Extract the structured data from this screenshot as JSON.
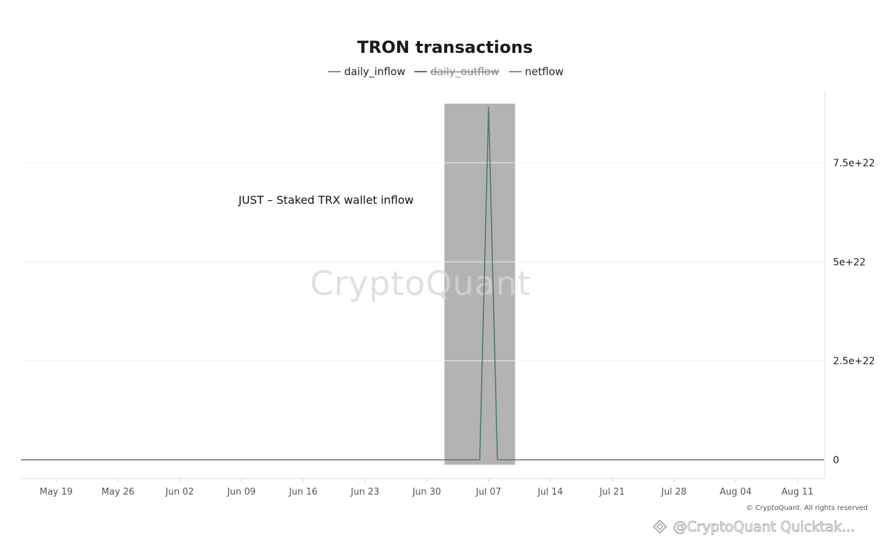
{
  "chart_data": {
    "type": "line",
    "title": "TRON transactions",
    "xlabel": "",
    "ylabel": "",
    "legend": {
      "placement": "top-center",
      "items": [
        {
          "name": "daily_inflow",
          "color": "#6f9a86",
          "hidden": false
        },
        {
          "name": "daily_outflow",
          "color": "#666666",
          "hidden": true
        },
        {
          "name": "netflow",
          "color": "#6f9a86",
          "hidden": false
        }
      ]
    },
    "x_ticks": [
      "May 19",
      "May 26",
      "Jun 02",
      "Jun 09",
      "Jun 16",
      "Jun 23",
      "Jun 30",
      "Jul 07",
      "Jul 14",
      "Jul 21",
      "Jul 28",
      "Aug 04",
      "Aug 11"
    ],
    "y_ticks": [
      "0",
      "2.5e+22",
      "5e+22",
      "7.5e+22"
    ],
    "y_tick_values": [
      0,
      2.5e+22,
      5e+22,
      7.5e+22
    ],
    "xlim": [
      "2024-05-15",
      "2024-08-14"
    ],
    "ylim": [
      -5e+21,
      9.3e+22
    ],
    "grid": true,
    "y_axis_side": "right",
    "series": [
      {
        "name": "netflow",
        "color": "#4f7a66",
        "x": [
          "2024-05-15",
          "2024-07-06",
          "2024-07-07",
          "2024-07-08",
          "2024-08-14"
        ],
        "values": [
          0,
          0,
          8.9e+22,
          0,
          0
        ]
      }
    ],
    "highlight": {
      "from": "2024-07-02",
      "to": "2024-07-10",
      "color": "#b3b3b3"
    },
    "annotation": "JUST – Staked TRX  wallet inflow"
  },
  "watermark": "CryptoQuant",
  "copyright": "© CryptoQuant. All rights reserved",
  "source_tag": "@CryptoQuant Quicktak..."
}
